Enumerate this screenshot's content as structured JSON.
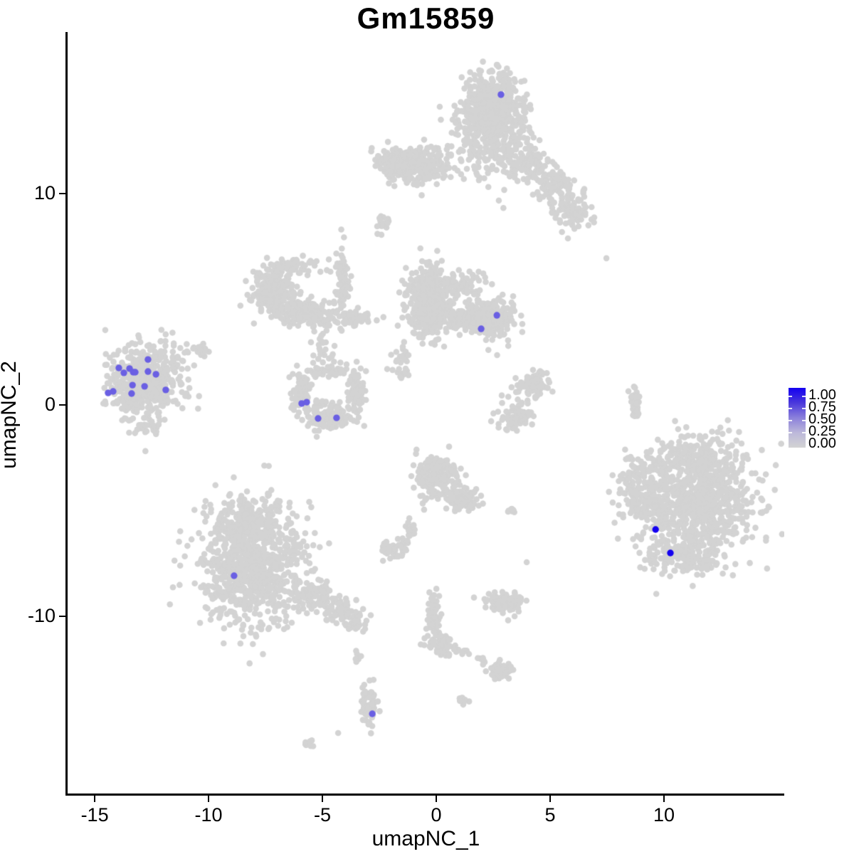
{
  "figure": {
    "background": "#ffffff"
  },
  "chart_data": {
    "type": "scatter",
    "title": "Gm15859",
    "xlabel": "umapNC_1",
    "ylabel": "umapNC_2",
    "xlim": [
      -16.19,
      15.28
    ],
    "ylim": [
      -18.38,
      17.64
    ],
    "x_ticks": [
      -15,
      -10,
      -5,
      0,
      5,
      10
    ],
    "y_ticks": [
      10,
      0,
      -10
    ],
    "grid": false,
    "point_color_low": "#D3D3D3",
    "point_color_high": "#1400F0",
    "point_radius_px": 4.3,
    "legend": {
      "position": "right",
      "labels": [
        "1.00",
        "0.75",
        "0.50",
        "0.25",
        "0.00"
      ],
      "gradient_top_to_bottom": [
        "#1400F0",
        "#4A38DC",
        "#8B80DB",
        "#BCB8DA",
        "#D3D3D3"
      ]
    },
    "background_cells": {
      "description": "Non-expressing cells (value 0.00), drawn as light grey gaussian blobs; n is cell count per blob, x/y center and rx/ry spread in UMAP units",
      "clusters": [
        {
          "x": 2.41,
          "y": 13.94,
          "rx": 1.34,
          "ry": 1.68,
          "n": 600
        },
        {
          "x": 2.72,
          "y": 12.59,
          "rx": 1.72,
          "ry": 1.95,
          "n": 220
        },
        {
          "x": 4.13,
          "y": 11.41,
          "rx": 0.78,
          "ry": 0.74,
          "n": 80
        },
        {
          "x": 5.22,
          "y": 10.34,
          "rx": 0.88,
          "ry": 0.84,
          "n": 85
        },
        {
          "x": 6.03,
          "y": 9.12,
          "rx": 0.88,
          "ry": 0.84,
          "n": 85
        },
        {
          "x": -0.88,
          "y": 11.38,
          "rx": 1.72,
          "ry": 0.91,
          "n": 230
        },
        {
          "x": -1.81,
          "y": 11.48,
          "rx": 0.78,
          "ry": 0.61,
          "n": 90
        },
        {
          "x": -2.31,
          "y": 8.62,
          "rx": 0.38,
          "ry": 0.4,
          "n": 18
        },
        {
          "x": -7.13,
          "y": 5.35,
          "rx": 0.94,
          "ry": 1.11,
          "n": 260
        },
        {
          "x": -5.66,
          "y": 4.34,
          "rx": 1.19,
          "ry": 0.61,
          "n": 160
        },
        {
          "x": -4.13,
          "y": 5.93,
          "rx": 0.28,
          "ry": 1.45,
          "n": 70
        },
        {
          "x": -3.63,
          "y": 4.07,
          "rx": 0.94,
          "ry": 0.44,
          "n": 50
        },
        {
          "x": -6.25,
          "y": 6.6,
          "rx": 1.0,
          "ry": 0.4,
          "n": 55
        },
        {
          "x": -4.94,
          "y": 2.59,
          "rx": 0.56,
          "ry": 0.88,
          "n": 24
        },
        {
          "x": -0.38,
          "y": 4.88,
          "rx": 0.94,
          "ry": 1.62,
          "n": 420
        },
        {
          "x": 1.31,
          "y": 4.14,
          "rx": 1.19,
          "ry": 0.67,
          "n": 180
        },
        {
          "x": 2.47,
          "y": 4.04,
          "rx": 0.97,
          "ry": 0.98,
          "n": 200
        },
        {
          "x": 1.16,
          "y": 5.76,
          "rx": 0.88,
          "ry": 0.54,
          "n": 60
        },
        {
          "x": -1.66,
          "y": 2.15,
          "rx": 0.44,
          "ry": 0.94,
          "n": 28
        },
        {
          "x": -12.81,
          "y": 1.08,
          "rx": 1.72,
          "ry": 1.68,
          "n": 520
        },
        {
          "x": -10.31,
          "y": 2.59,
          "rx": 0.5,
          "ry": 0.34,
          "n": 22
        },
        {
          "x": -12.44,
          "y": -1.08,
          "rx": 0.78,
          "ry": 0.34,
          "n": 22
        },
        {
          "x": -5.91,
          "y": 0.64,
          "rx": 0.41,
          "ry": 0.84,
          "n": 80
        },
        {
          "x": -4.72,
          "y": -0.54,
          "rx": 1.25,
          "ry": 0.61,
          "n": 150
        },
        {
          "x": -3.44,
          "y": 0.64,
          "rx": 0.41,
          "ry": 0.84,
          "n": 80
        },
        {
          "x": -4.63,
          "y": 1.62,
          "rx": 1.25,
          "ry": 0.47,
          "n": 40
        },
        {
          "x": 4.31,
          "y": 0.88,
          "rx": 0.75,
          "ry": 0.57,
          "n": 80
        },
        {
          "x": 3.44,
          "y": -0.54,
          "rx": 0.75,
          "ry": 0.74,
          "n": 70
        },
        {
          "x": 8.69,
          "y": 0.2,
          "rx": 0.25,
          "ry": 0.91,
          "n": 32
        },
        {
          "x": 11.47,
          "y": -4.58,
          "rx": 2.5,
          "ry": 2.69,
          "n": 900
        },
        {
          "x": 8.97,
          "y": -4.07,
          "rx": 0.94,
          "ry": 1.85,
          "n": 150
        },
        {
          "x": 10.84,
          "y": -7.1,
          "rx": 1.88,
          "ry": 0.84,
          "n": 150
        },
        {
          "x": 11.31,
          "y": -2.39,
          "rx": 1.72,
          "ry": 0.74,
          "n": 110
        },
        {
          "x": -8.06,
          "y": -7.61,
          "rx": 2.34,
          "ry": 2.86,
          "n": 850
        },
        {
          "x": -8.22,
          "y": -5.42,
          "rx": 1.41,
          "ry": 0.84,
          "n": 170
        },
        {
          "x": -5.41,
          "y": -8.96,
          "rx": 0.69,
          "ry": 0.61,
          "n": 70
        },
        {
          "x": -4.31,
          "y": -9.63,
          "rx": 0.69,
          "ry": 0.54,
          "n": 60
        },
        {
          "x": -3.53,
          "y": -10.2,
          "rx": 0.56,
          "ry": 0.44,
          "n": 40
        },
        {
          "x": -0.03,
          "y": -3.4,
          "rx": 0.88,
          "ry": 0.94,
          "n": 180
        },
        {
          "x": 1.09,
          "y": -4.41,
          "rx": 0.75,
          "ry": 0.61,
          "n": 90
        },
        {
          "x": -1.88,
          "y": -6.87,
          "rx": 0.63,
          "ry": 0.4,
          "n": 45
        },
        {
          "x": -1.16,
          "y": -6.03,
          "rx": 0.25,
          "ry": 0.54,
          "n": 15
        },
        {
          "x": 3.03,
          "y": -9.39,
          "rx": 0.88,
          "ry": 0.47,
          "n": 90
        },
        {
          "x": -0.09,
          "y": -10.3,
          "rx": 0.38,
          "ry": 1.35,
          "n": 85
        },
        {
          "x": 0.38,
          "y": -11.41,
          "rx": 0.31,
          "ry": 0.54,
          "n": 40
        },
        {
          "x": 1.0,
          "y": -11.65,
          "rx": 0.38,
          "ry": 0.2,
          "n": 12
        },
        {
          "x": 1.97,
          "y": -12.02,
          "rx": 0.25,
          "ry": 0.17,
          "n": 8
        },
        {
          "x": 2.78,
          "y": -12.53,
          "rx": 0.56,
          "ry": 0.44,
          "n": 55
        },
        {
          "x": 1.16,
          "y": -13.91,
          "rx": 0.22,
          "ry": 0.2,
          "n": 8
        },
        {
          "x": -3.44,
          "y": -11.99,
          "rx": 0.16,
          "ry": 0.4,
          "n": 6
        },
        {
          "x": 3.28,
          "y": -4.98,
          "rx": 0.25,
          "ry": 0.17,
          "n": 8
        },
        {
          "x": -2.97,
          "y": -14.28,
          "rx": 0.34,
          "ry": 1.01,
          "n": 70
        },
        {
          "x": -5.63,
          "y": -16.03,
          "rx": 0.28,
          "ry": 0.24,
          "n": 10
        }
      ],
      "singles": [
        {
          "x": 5.78,
          "y": 7.88
        },
        {
          "x": 7.47,
          "y": 6.94
        },
        {
          "x": -2.41,
          "y": 8.05
        },
        {
          "x": 3.97,
          "y": -7.44
        },
        {
          "x": -0.25,
          "y": -11.48
        },
        {
          "x": -4.31,
          "y": -15.52
        }
      ]
    },
    "expressing_cells": [
      {
        "x": -14.41,
        "y": 0.57,
        "value": 0.55
      },
      {
        "x": -14.19,
        "y": 0.64,
        "value": 0.55
      },
      {
        "x": -13.94,
        "y": 1.75,
        "value": 0.55
      },
      {
        "x": -13.72,
        "y": 1.52,
        "value": 0.55
      },
      {
        "x": -13.47,
        "y": 1.72,
        "value": 0.55
      },
      {
        "x": -13.31,
        "y": 1.55,
        "value": 0.55
      },
      {
        "x": -13.22,
        "y": 1.55,
        "value": 0.55
      },
      {
        "x": -12.66,
        "y": 2.15,
        "value": 0.55
      },
      {
        "x": -12.66,
        "y": 1.58,
        "value": 0.55
      },
      {
        "x": -12.31,
        "y": 1.45,
        "value": 0.55
      },
      {
        "x": -13.34,
        "y": 0.94,
        "value": 0.55
      },
      {
        "x": -12.81,
        "y": 0.88,
        "value": 0.55
      },
      {
        "x": -11.88,
        "y": 0.71,
        "value": 0.55
      },
      {
        "x": -13.38,
        "y": 0.54,
        "value": 0.55
      },
      {
        "x": -5.91,
        "y": 0.07,
        "value": 0.55
      },
      {
        "x": -5.69,
        "y": 0.13,
        "value": 0.55
      },
      {
        "x": -5.19,
        "y": -0.64,
        "value": 0.55
      },
      {
        "x": -4.38,
        "y": -0.61,
        "value": 0.55
      },
      {
        "x": 2.66,
        "y": 4.24,
        "value": 0.55
      },
      {
        "x": 1.97,
        "y": 3.6,
        "value": 0.55
      },
      {
        "x": 2.84,
        "y": 14.68,
        "value": 0.55
      },
      {
        "x": -8.88,
        "y": -8.08,
        "value": 0.55
      },
      {
        "x": -2.81,
        "y": -14.61,
        "value": 0.55
      },
      {
        "x": 9.63,
        "y": -5.89,
        "value": 1.0
      },
      {
        "x": 10.28,
        "y": -7.0,
        "value": 1.0
      }
    ]
  }
}
